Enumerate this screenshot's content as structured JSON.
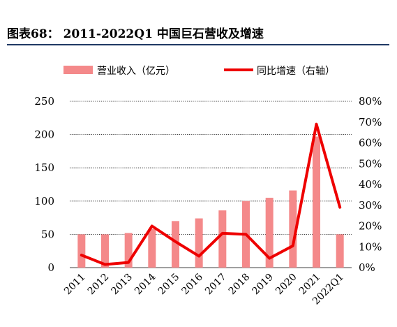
{
  "figure_title": "图表68：  2011-2022Q1 中国巨石营收及增速",
  "colors": {
    "bar": "#f4898a",
    "line": "#ee0000",
    "grid": "#000000",
    "rule": "#1f3864"
  },
  "chart_data": {
    "type": "bar",
    "categories": [
      "2011",
      "2012",
      "2013",
      "2014",
      "2015",
      "2016",
      "2017",
      "2018",
      "2019",
      "2020",
      "2021",
      "2022Q1"
    ],
    "series": [
      {
        "name": "营业收入（亿元）",
        "type": "bar",
        "axis": "left",
        "values": [
          50,
          50,
          52,
          58,
          70,
          74,
          86,
          100,
          105,
          116,
          197,
          50
        ]
      },
      {
        "name": "同比增速（右轴）",
        "type": "line",
        "axis": "right",
        "values": [
          6,
          1.5,
          2.5,
          20,
          12.5,
          5.5,
          16.5,
          16,
          4.5,
          10.5,
          69,
          29
        ]
      }
    ],
    "y_left": {
      "min": 0,
      "max": 250,
      "ticks": [
        "0",
        "50",
        "100",
        "150",
        "200",
        "250"
      ]
    },
    "y_right": {
      "min": 0,
      "max": 80,
      "ticks": [
        "0%",
        "10%",
        "20%",
        "30%",
        "40%",
        "50%",
        "60%",
        "70%",
        "80%"
      ]
    },
    "grid": "dotted horizontal",
    "legend_position": "top"
  }
}
